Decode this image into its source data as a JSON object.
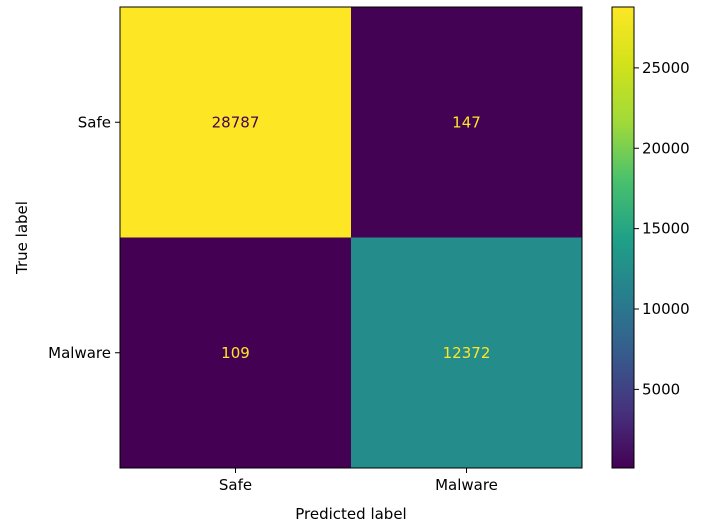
{
  "chart_data": {
    "type": "heatmap",
    "title": "",
    "xlabel": "Predicted label",
    "ylabel": "True label",
    "x_categories": [
      "Safe",
      "Malware"
    ],
    "y_categories": [
      "Safe",
      "Malware"
    ],
    "values": [
      [
        28787,
        147
      ],
      [
        109,
        12372
      ]
    ],
    "cell_labels": [
      [
        "28787",
        "147"
      ],
      [
        "109",
        "12372"
      ]
    ],
    "colormap": "viridis",
    "colorbar": {
      "range": [
        109,
        28787
      ],
      "ticks": [
        5000,
        10000,
        15000,
        20000,
        25000
      ],
      "tick_labels": [
        "5000",
        "10000",
        "15000",
        "20000",
        "25000"
      ]
    },
    "text_colors": {
      "on_light": "#440154",
      "on_dark": "#fde725"
    }
  }
}
